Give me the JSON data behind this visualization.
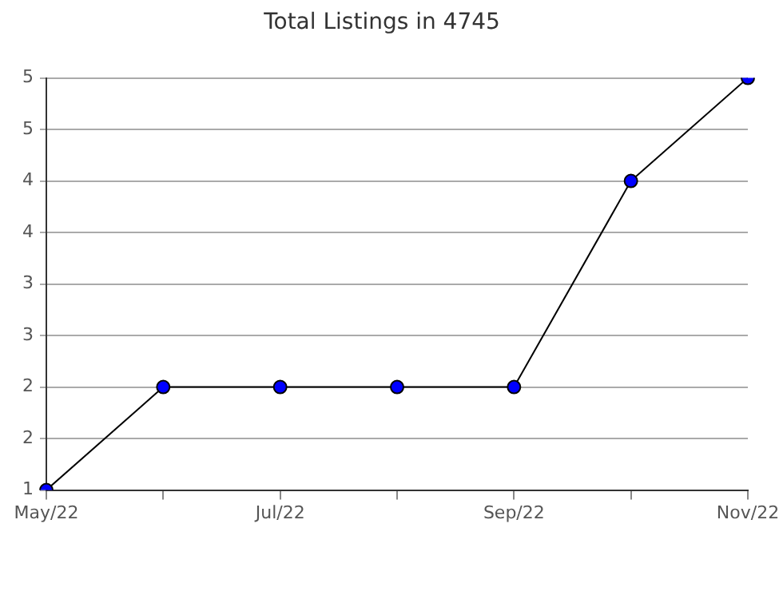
{
  "chart_data": {
    "type": "line",
    "title": "Total Listings in 4745",
    "categories": [
      "May/22",
      null,
      "Jul/22",
      null,
      "Sep/22",
      null,
      "Nov/22"
    ],
    "series": [
      {
        "color": "#0000ff",
        "values": [
          1,
          2,
          2,
          2,
          2,
          4,
          5
        ]
      }
    ],
    "ylim": [
      1,
      5
    ],
    "yticks": [
      1,
      {
        "value": 1.5,
        "label": "2"
      },
      2,
      {
        "value": 2.5,
        "label": "3"
      },
      3,
      {
        "value": 3.5,
        "label": "4"
      },
      4,
      {
        "value": 4.5,
        "label": "5"
      },
      5
    ],
    "grid": "y",
    "legend": false,
    "marker": "circle",
    "line_style": "solid"
  }
}
